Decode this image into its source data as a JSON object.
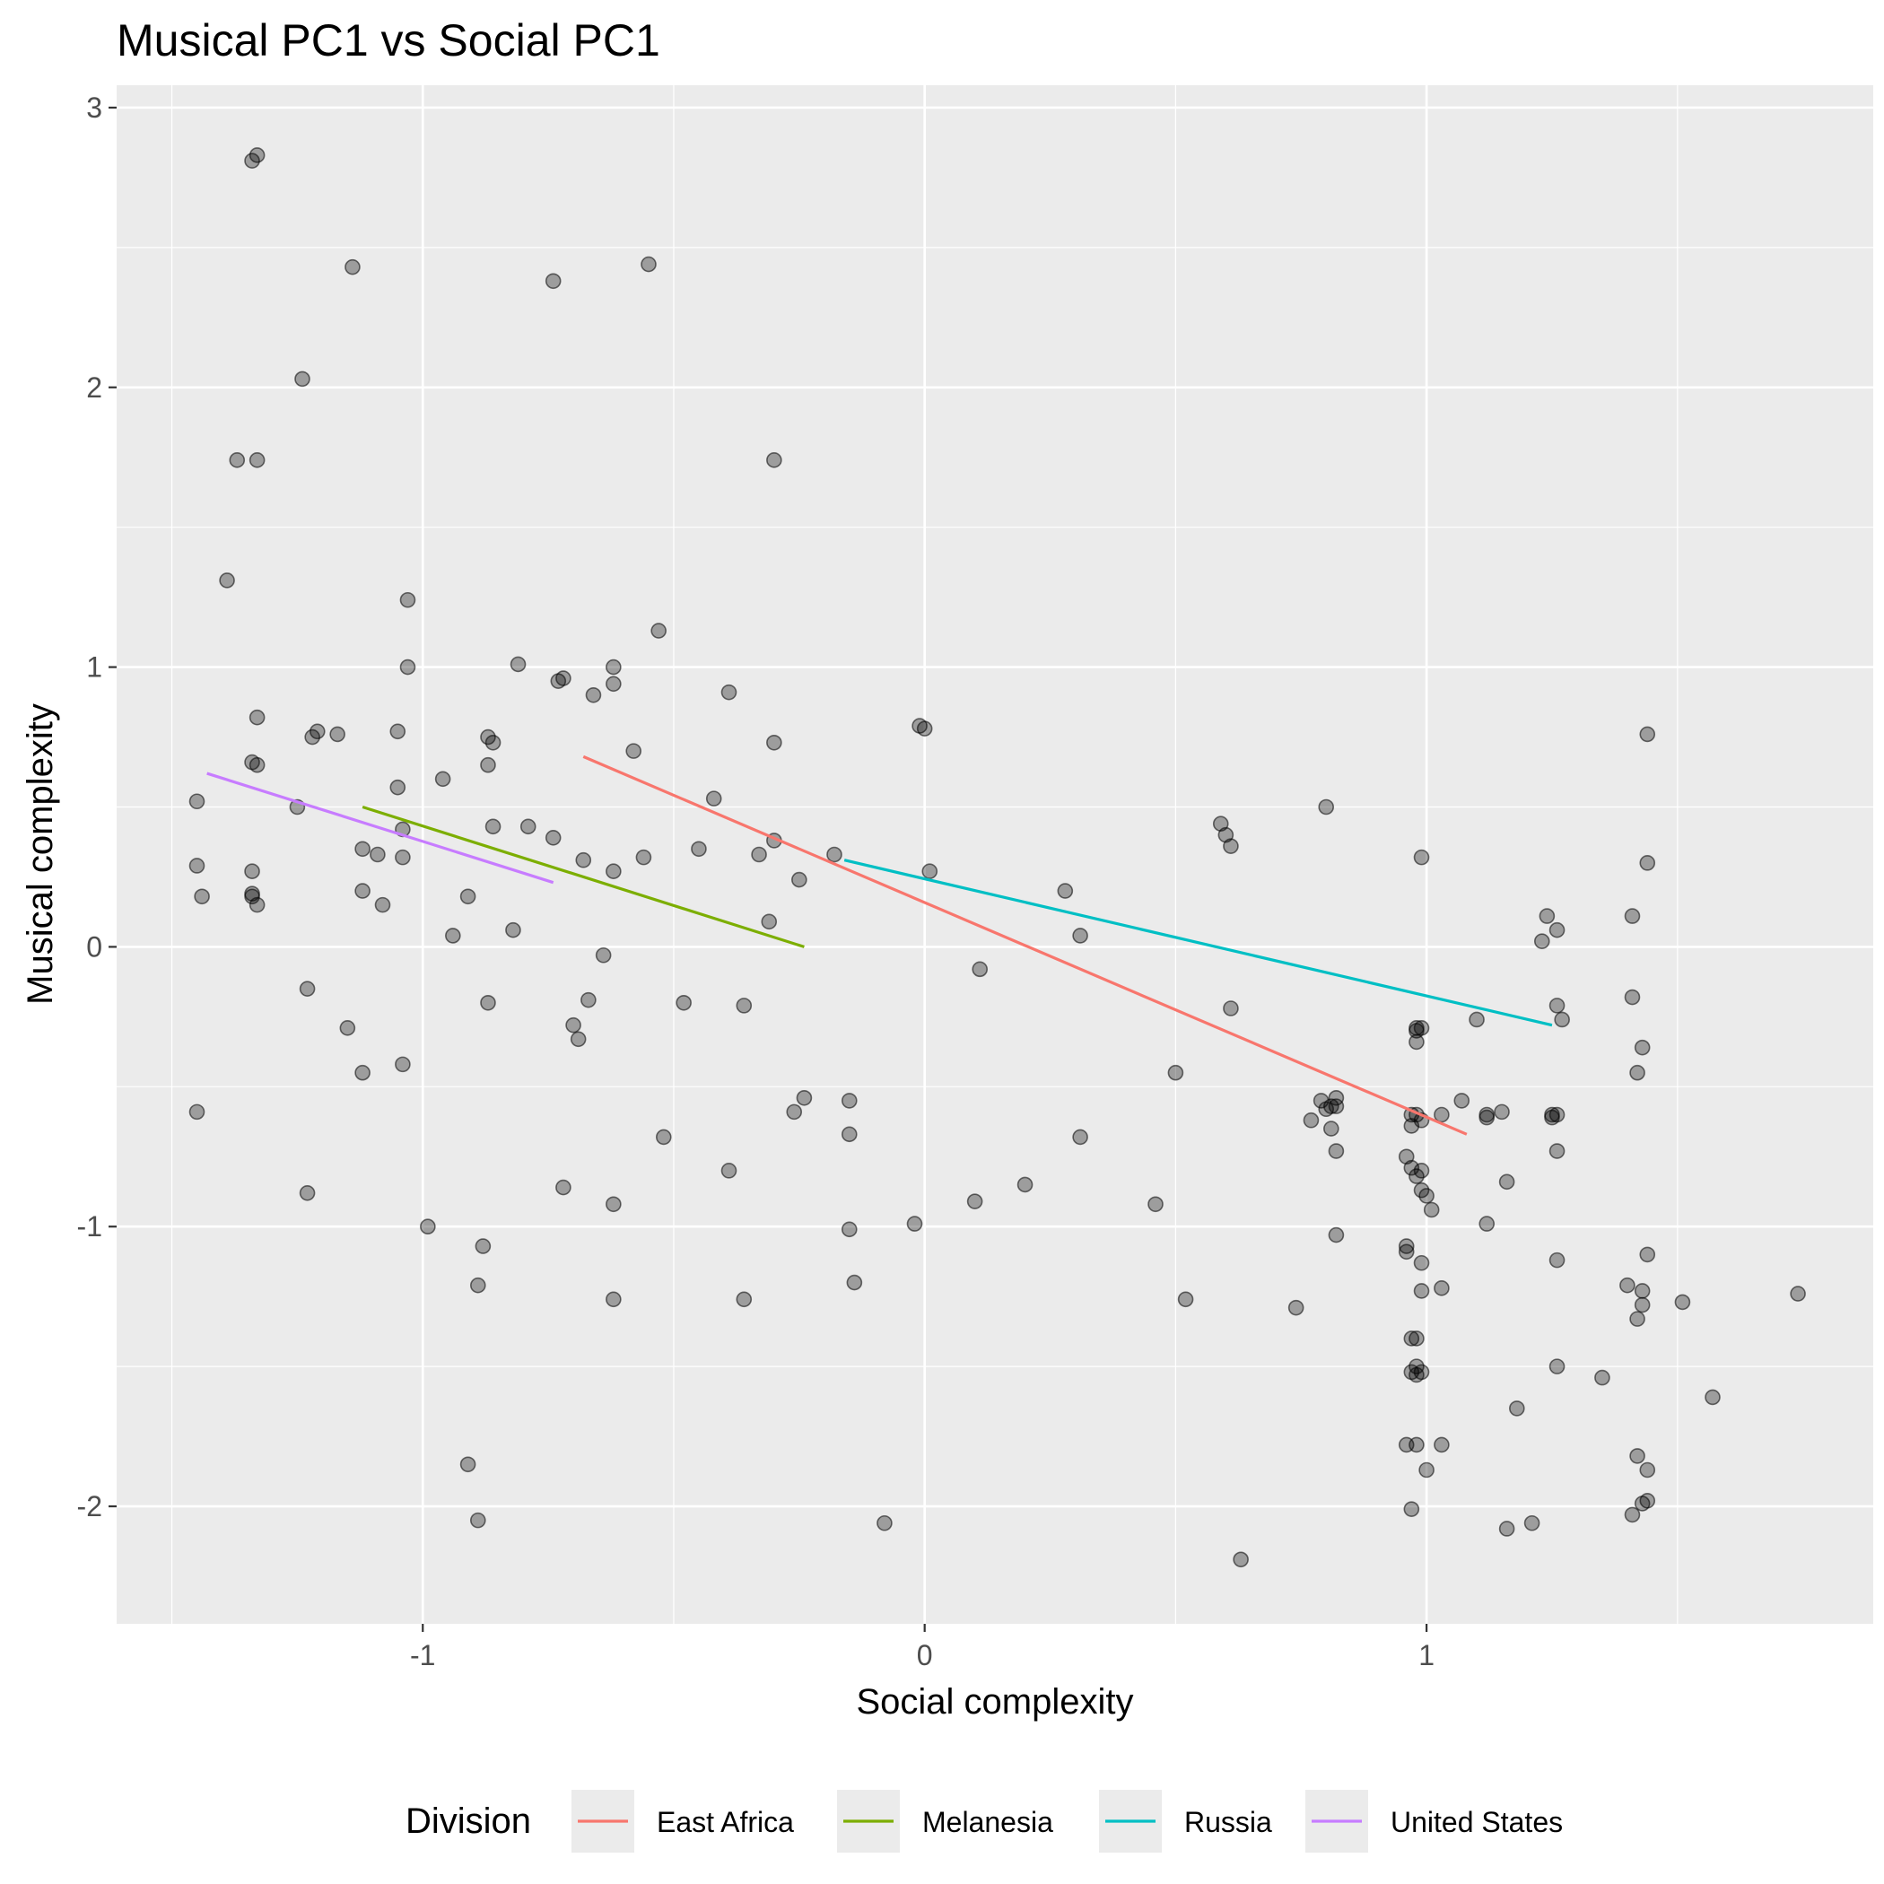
{
  "chart_data": {
    "type": "scatter",
    "title": "Musical PC1 vs Social PC1",
    "xlabel": "Social complexity",
    "ylabel": "Musical complexity",
    "xlim": [
      -1.61,
      1.89
    ],
    "ylim": [
      -2.42,
      3.08
    ],
    "x_ticks": [
      -1,
      0,
      1
    ],
    "x_tick_labels": [
      "-1",
      "0",
      "1"
    ],
    "y_ticks": [
      -2,
      -1,
      0,
      1,
      2,
      3
    ],
    "y_tick_labels": [
      "-2",
      "-1",
      "0",
      "1",
      "2",
      "3"
    ],
    "grid": true,
    "legend_title": "Division",
    "legend_position": "bottom",
    "series": [
      {
        "name": "East Africa",
        "color": "#F8766D",
        "x": [
          -0.68,
          1.08
        ],
        "y": [
          0.68,
          -0.67
        ]
      },
      {
        "name": "Melanesia",
        "color": "#7CAE00",
        "x": [
          -1.12,
          -0.24
        ],
        "y": [
          0.5,
          0.0
        ]
      },
      {
        "name": "Russia",
        "color": "#00BFC4",
        "x": [
          -0.16,
          1.25
        ],
        "y": [
          0.31,
          -0.28
        ]
      },
      {
        "name": "United States",
        "color": "#C77CFF",
        "x": [
          -1.43,
          -0.74
        ],
        "y": [
          0.62,
          0.23
        ]
      }
    ],
    "points": [
      [
        -1.34,
        2.81
      ],
      [
        -1.33,
        2.83
      ],
      [
        -1.14,
        2.43
      ],
      [
        -0.74,
        2.38
      ],
      [
        -0.55,
        2.44
      ],
      [
        -1.24,
        2.03
      ],
      [
        -1.37,
        1.74
      ],
      [
        -1.33,
        1.74
      ],
      [
        -0.3,
        1.74
      ],
      [
        -1.39,
        1.31
      ],
      [
        -1.03,
        1.24
      ],
      [
        -0.53,
        1.13
      ],
      [
        -1.03,
        1.0
      ],
      [
        -0.81,
        1.01
      ],
      [
        -0.62,
        1.0
      ],
      [
        -0.72,
        0.96
      ],
      [
        -0.73,
        0.95
      ],
      [
        -0.66,
        0.9
      ],
      [
        -0.62,
        0.94
      ],
      [
        -0.39,
        0.91
      ],
      [
        -1.33,
        0.82
      ],
      [
        -1.21,
        0.77
      ],
      [
        -1.22,
        0.75
      ],
      [
        -1.17,
        0.76
      ],
      [
        -1.05,
        0.77
      ],
      [
        -0.87,
        0.75
      ],
      [
        -0.86,
        0.73
      ],
      [
        -0.01,
        0.79
      ],
      [
        0.0,
        0.78
      ],
      [
        -0.3,
        0.73
      ],
      [
        -1.34,
        0.66
      ],
      [
        -1.33,
        0.65
      ],
      [
        -0.87,
        0.65
      ],
      [
        -0.58,
        0.7
      ],
      [
        -1.05,
        0.57
      ],
      [
        -0.96,
        0.6
      ],
      [
        -1.45,
        0.52
      ],
      [
        -1.25,
        0.5
      ],
      [
        -0.42,
        0.53
      ],
      [
        -1.04,
        0.42
      ],
      [
        -0.86,
        0.43
      ],
      [
        -0.79,
        0.43
      ],
      [
        -0.74,
        0.39
      ],
      [
        -0.3,
        0.38
      ],
      [
        -1.12,
        0.35
      ],
      [
        -1.09,
        0.33
      ],
      [
        -1.04,
        0.32
      ],
      [
        -0.68,
        0.31
      ],
      [
        -0.62,
        0.27
      ],
      [
        -0.56,
        0.32
      ],
      [
        -0.45,
        0.35
      ],
      [
        -0.33,
        0.33
      ],
      [
        -1.45,
        0.29
      ],
      [
        -1.34,
        0.27
      ],
      [
        -1.44,
        0.18
      ],
      [
        -1.34,
        0.19
      ],
      [
        -1.34,
        0.18
      ],
      [
        -1.33,
        0.15
      ],
      [
        -1.12,
        0.2
      ],
      [
        -1.08,
        0.15
      ],
      [
        -0.91,
        0.18
      ],
      [
        -0.25,
        0.24
      ],
      [
        -0.18,
        0.33
      ],
      [
        0.01,
        0.27
      ],
      [
        -0.94,
        0.04
      ],
      [
        -0.82,
        0.06
      ],
      [
        -0.31,
        0.09
      ],
      [
        0.28,
        0.2
      ],
      [
        0.31,
        0.04
      ],
      [
        0.59,
        0.44
      ],
      [
        0.6,
        0.4
      ],
      [
        0.61,
        0.36
      ],
      [
        0.8,
        0.5
      ],
      [
        0.99,
        0.32
      ],
      [
        -0.64,
        -0.03
      ],
      [
        0.11,
        -0.08
      ],
      [
        -1.23,
        -0.15
      ],
      [
        -0.87,
        -0.2
      ],
      [
        -0.67,
        -0.19
      ],
      [
        -0.48,
        -0.2
      ],
      [
        -0.36,
        -0.21
      ],
      [
        -1.15,
        -0.29
      ],
      [
        -0.7,
        -0.28
      ],
      [
        -0.69,
        -0.33
      ],
      [
        -1.12,
        -0.45
      ],
      [
        -1.04,
        -0.42
      ],
      [
        0.61,
        -0.22
      ],
      [
        0.98,
        -0.29
      ],
      [
        0.99,
        -0.29
      ],
      [
        0.98,
        -0.3
      ],
      [
        0.98,
        -0.34
      ],
      [
        1.1,
        -0.26
      ],
      [
        1.26,
        -0.21
      ],
      [
        1.27,
        -0.26
      ],
      [
        1.23,
        0.02
      ],
      [
        1.24,
        0.11
      ],
      [
        1.26,
        0.06
      ],
      [
        1.41,
        0.11
      ],
      [
        1.41,
        -0.18
      ],
      [
        1.43,
        -0.36
      ],
      [
        1.42,
        -0.45
      ],
      [
        1.44,
        0.3
      ],
      [
        1.44,
        0.76
      ],
      [
        -1.45,
        -0.59
      ],
      [
        -0.26,
        -0.59
      ],
      [
        -0.24,
        -0.54
      ],
      [
        -0.15,
        -0.55
      ],
      [
        -0.15,
        -0.67
      ],
      [
        -0.52,
        -0.68
      ],
      [
        0.31,
        -0.68
      ],
      [
        0.5,
        -0.45
      ],
      [
        0.79,
        -0.55
      ],
      [
        0.81,
        -0.57
      ],
      [
        0.8,
        -0.58
      ],
      [
        0.82,
        -0.54
      ],
      [
        0.82,
        -0.57
      ],
      [
        0.77,
        -0.62
      ],
      [
        0.81,
        -0.65
      ],
      [
        0.82,
        -0.73
      ],
      [
        0.97,
        -0.6
      ],
      [
        0.97,
        -0.64
      ],
      [
        0.98,
        -0.6
      ],
      [
        0.99,
        -0.62
      ],
      [
        0.96,
        -0.75
      ],
      [
        0.97,
        -0.79
      ],
      [
        0.98,
        -0.82
      ],
      [
        0.99,
        -0.8
      ],
      [
        0.99,
        -0.87
      ],
      [
        1.0,
        -0.89
      ],
      [
        1.03,
        -0.6
      ],
      [
        1.07,
        -0.55
      ],
      [
        1.12,
        -0.6
      ],
      [
        1.12,
        -0.61
      ],
      [
        1.15,
        -0.59
      ],
      [
        1.25,
        -0.6
      ],
      [
        1.25,
        -0.61
      ],
      [
        1.26,
        -0.6
      ],
      [
        1.26,
        -0.73
      ],
      [
        1.16,
        -0.84
      ],
      [
        -1.23,
        -0.88
      ],
      [
        -0.72,
        -0.86
      ],
      [
        -0.62,
        -0.92
      ],
      [
        -0.39,
        -0.8
      ],
      [
        0.1,
        -0.91
      ],
      [
        0.2,
        -0.85
      ],
      [
        0.46,
        -0.92
      ],
      [
        1.01,
        -0.94
      ],
      [
        -0.99,
        -1.0
      ],
      [
        -0.02,
        -0.99
      ],
      [
        -0.15,
        -1.01
      ],
      [
        -0.88,
        -1.07
      ],
      [
        -0.89,
        -1.21
      ],
      [
        -0.62,
        -1.26
      ],
      [
        -0.36,
        -1.26
      ],
      [
        -0.14,
        -1.2
      ],
      [
        0.52,
        -1.26
      ],
      [
        0.74,
        -1.29
      ],
      [
        0.82,
        -1.03
      ],
      [
        0.96,
        -1.09
      ],
      [
        0.96,
        -1.07
      ],
      [
        0.99,
        -1.13
      ],
      [
        0.99,
        -1.23
      ],
      [
        1.03,
        -1.22
      ],
      [
        1.12,
        -0.99
      ],
      [
        1.26,
        -1.12
      ],
      [
        1.44,
        -1.1
      ],
      [
        1.4,
        -1.21
      ],
      [
        1.43,
        -1.23
      ],
      [
        1.43,
        -1.28
      ],
      [
        1.42,
        -1.33
      ],
      [
        1.51,
        -1.27
      ],
      [
        1.74,
        -1.24
      ],
      [
        0.97,
        -1.4
      ],
      [
        0.98,
        -1.4
      ],
      [
        0.98,
        -1.5
      ],
      [
        0.97,
        -1.52
      ],
      [
        0.98,
        -1.53
      ],
      [
        0.99,
        -1.52
      ],
      [
        1.26,
        -1.5
      ],
      [
        1.35,
        -1.54
      ],
      [
        1.57,
        -1.61
      ],
      [
        1.18,
        -1.65
      ],
      [
        0.96,
        -1.78
      ],
      [
        0.98,
        -1.78
      ],
      [
        1.03,
        -1.78
      ],
      [
        1.0,
        -1.87
      ],
      [
        1.42,
        -1.82
      ],
      [
        1.44,
        -1.87
      ],
      [
        -0.91,
        -1.85
      ],
      [
        -0.89,
        -2.05
      ],
      [
        -0.08,
        -2.06
      ],
      [
        0.63,
        -2.19
      ],
      [
        0.97,
        -2.01
      ],
      [
        1.16,
        -2.08
      ],
      [
        1.21,
        -2.06
      ],
      [
        1.41,
        -2.03
      ],
      [
        1.43,
        -1.99
      ],
      [
        1.44,
        -1.98
      ]
    ]
  }
}
